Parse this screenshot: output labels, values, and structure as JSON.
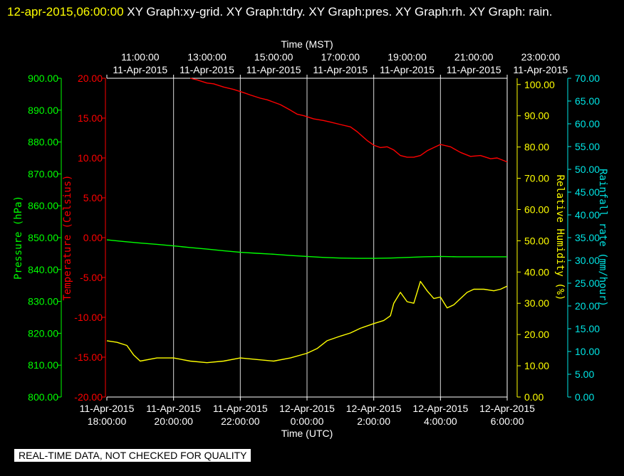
{
  "header": {
    "timestamp": "12-apr-2015,06:00:00",
    "titles": "XY Graph:xy-grid.  XY Graph:tdry.  XY Graph:pres.  XY Graph:rh.  XY Graph: rain."
  },
  "footer": {
    "qc_note": "REAL-TIME DATA, NOT CHECKED FOR QUALITY"
  },
  "colors": {
    "pressure": "#00ff00",
    "temperature": "#ff0000",
    "humidity": "#ffff00",
    "rain": "#00e5e5",
    "grid": "#ffffff",
    "text": "#ffffff"
  },
  "chart_data": {
    "type": "line",
    "grid": true,
    "x_top": {
      "label": "Time (MST)",
      "ticks": [
        {
          "time": "11:00:00",
          "date": "11-Apr-2015"
        },
        {
          "time": "13:00:00",
          "date": "11-Apr-2015"
        },
        {
          "time": "15:00:00",
          "date": "11-Apr-2015"
        },
        {
          "time": "17:00:00",
          "date": "11-Apr-2015"
        },
        {
          "time": "19:00:00",
          "date": "11-Apr-2015"
        },
        {
          "time": "21:00:00",
          "date": "11-Apr-2015"
        },
        {
          "time": "23:00:00",
          "date": "11-Apr-2015"
        }
      ]
    },
    "x_bottom": {
      "label": "Time (UTC)",
      "range_hours": [
        0,
        12
      ],
      "ticks": [
        {
          "date": "11-Apr-2015",
          "time": "18:00:00"
        },
        {
          "date": "11-Apr-2015",
          "time": "20:00:00"
        },
        {
          "date": "11-Apr-2015",
          "time": "22:00:00"
        },
        {
          "date": "12-Apr-2015",
          "time": "0:00:00"
        },
        {
          "date": "12-Apr-2015",
          "time": "2:00:00"
        },
        {
          "date": "12-Apr-2015",
          "time": "4:00:00"
        },
        {
          "date": "12-Apr-2015",
          "time": "6:00:00"
        }
      ]
    },
    "axes": {
      "pressure": {
        "label": "Pressure (hPa)",
        "ylim": [
          800,
          900
        ],
        "ticks": [
          "800.00",
          "810.00",
          "820.00",
          "830.00",
          "840.00",
          "850.00",
          "860.00",
          "870.00",
          "880.00",
          "890.00",
          "900.00"
        ]
      },
      "temperature": {
        "label": "Temperature (Celsius)",
        "ylim": [
          -20,
          20
        ],
        "ticks": [
          "-20.00",
          "-15.00",
          "-10.00",
          "-5.00",
          "0.00",
          "5.00",
          "10.00",
          "15.00",
          "20.00"
        ]
      },
      "humidity": {
        "label": "Relative Humidity (%)",
        "ylim": [
          0,
          102
        ],
        "ticks": [
          "0.00",
          "10.00",
          "20.00",
          "30.00",
          "40.00",
          "50.00",
          "60.00",
          "70.00",
          "80.00",
          "90.00",
          "100.00"
        ]
      },
      "rain": {
        "label": "Rainfall rate (mm/hour)",
        "ylim": [
          0,
          70
        ],
        "ticks": [
          "0.00",
          "5.00",
          "10.00",
          "15.00",
          "20.00",
          "25.00",
          "30.00",
          "35.00",
          "40.00",
          "45.00",
          "50.00",
          "55.00",
          "60.00",
          "65.00",
          "70.00"
        ]
      }
    },
    "series": [
      {
        "axis": "temperature",
        "x": [
          2.5,
          2.7,
          3.0,
          3.2,
          3.5,
          3.8,
          4.1,
          4.3,
          4.6,
          4.8,
          5.0,
          5.2,
          5.5,
          5.7,
          5.9,
          6.2,
          6.5,
          6.7,
          7.0,
          7.3,
          7.5,
          7.8,
          8.0,
          8.2,
          8.4,
          8.6,
          8.8,
          9.0,
          9.2,
          9.4,
          9.6,
          9.8,
          10.0,
          10.3,
          10.6,
          10.9,
          11.2,
          11.5,
          11.7,
          12.0
        ],
        "y": [
          20.3,
          19.8,
          19.4,
          19.3,
          18.9,
          18.6,
          18.2,
          17.9,
          17.5,
          17.3,
          17.0,
          16.7,
          16.0,
          15.5,
          15.3,
          14.9,
          14.7,
          14.5,
          14.2,
          13.9,
          13.3,
          12.2,
          11.6,
          11.3,
          11.4,
          11.0,
          10.3,
          10.1,
          10.1,
          10.3,
          10.9,
          11.3,
          11.7,
          11.4,
          10.7,
          10.2,
          10.3,
          9.9,
          10.0,
          9.5
        ]
      },
      {
        "axis": "pressure",
        "x": [
          0,
          0.5,
          1.0,
          1.5,
          2.0,
          2.5,
          3.0,
          3.5,
          4.0,
          4.5,
          5.0,
          5.5,
          6.0,
          6.5,
          7.0,
          7.5,
          8.0,
          8.5,
          9.0,
          9.5,
          10.0,
          10.5,
          11.0,
          11.5,
          12.0
        ],
        "y": [
          849.3,
          848.8,
          848.3,
          847.9,
          847.4,
          846.9,
          846.4,
          845.9,
          845.4,
          845.1,
          844.8,
          844.4,
          844.1,
          843.8,
          843.6,
          843.5,
          843.5,
          843.6,
          843.8,
          844.0,
          844.1,
          844.0,
          844.0,
          844.0,
          844.0
        ]
      },
      {
        "axis": "humidity",
        "x": [
          0,
          0.3,
          0.6,
          0.8,
          1.0,
          1.5,
          2.0,
          2.5,
          3.0,
          3.5,
          4.0,
          4.5,
          5.0,
          5.5,
          6.0,
          6.3,
          6.6,
          7.0,
          7.3,
          7.6,
          8.0,
          8.3,
          8.5,
          8.6,
          8.8,
          9.0,
          9.2,
          9.4,
          9.6,
          9.8,
          10.0,
          10.2,
          10.4,
          10.6,
          10.8,
          11.0,
          11.3,
          11.6,
          11.8,
          12.0
        ],
        "y": [
          18.0,
          17.5,
          16.5,
          13.5,
          11.5,
          12.5,
          12.5,
          11.5,
          11.0,
          11.5,
          12.5,
          12.0,
          11.5,
          12.5,
          14.0,
          15.5,
          18.0,
          19.5,
          20.5,
          22.0,
          23.5,
          24.5,
          26.0,
          30.0,
          33.5,
          30.5,
          30.0,
          37.0,
          34.0,
          31.5,
          32.0,
          28.5,
          29.5,
          31.5,
          33.5,
          34.5,
          34.5,
          34.0,
          34.5,
          35.5
        ]
      }
    ]
  }
}
